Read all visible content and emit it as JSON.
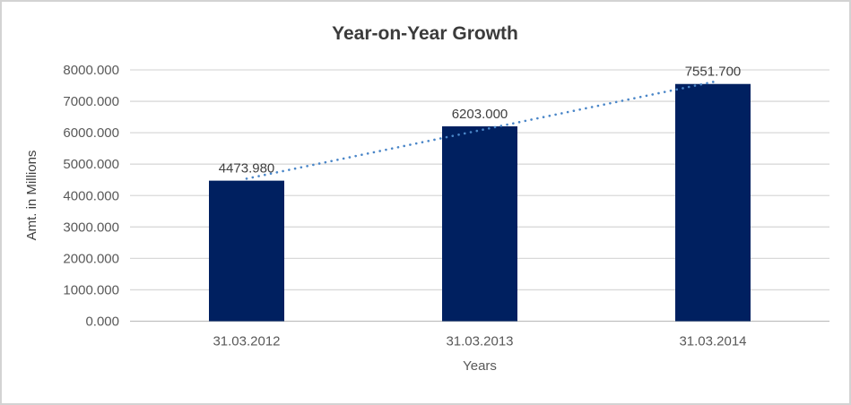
{
  "chart_data": {
    "type": "bar",
    "title": "Year-on-Year Growth",
    "categories": [
      "31.03.2012",
      "31.03.2013",
      "31.03.2014"
    ],
    "values": [
      4473.98,
      6203.0,
      7551.7
    ],
    "value_labels": [
      "4473.980",
      "6203.000",
      "7551.700"
    ],
    "xlabel": "Years",
    "ylabel": "Amt. in Millions",
    "ylim": [
      0,
      8000
    ],
    "yticks": [
      {
        "value": 0,
        "label": "0.000"
      },
      {
        "value": 1000,
        "label": "1000.000"
      },
      {
        "value": 2000,
        "label": "2000.000"
      },
      {
        "value": 3000,
        "label": "3000.000"
      },
      {
        "value": 4000,
        "label": "4000.000"
      },
      {
        "value": 5000,
        "label": "5000.000"
      },
      {
        "value": 6000,
        "label": "6000.000"
      },
      {
        "value": 7000,
        "label": "7000.000"
      },
      {
        "value": 8000,
        "label": "8000.000"
      }
    ],
    "grid": true,
    "legend": "none",
    "trendline": {
      "type": "linear",
      "style": "dotted"
    },
    "colors": {
      "bar": "#002060",
      "trendline": "#4a86c8",
      "gridline": "#d9d9d9",
      "axis_line": "#bfbfbf",
      "title_text": "#3b3b3b",
      "axis_text": "#595959",
      "data_label_text": "#404040",
      "chart_border": "#d3d3d3",
      "background": "#ffffff"
    }
  }
}
